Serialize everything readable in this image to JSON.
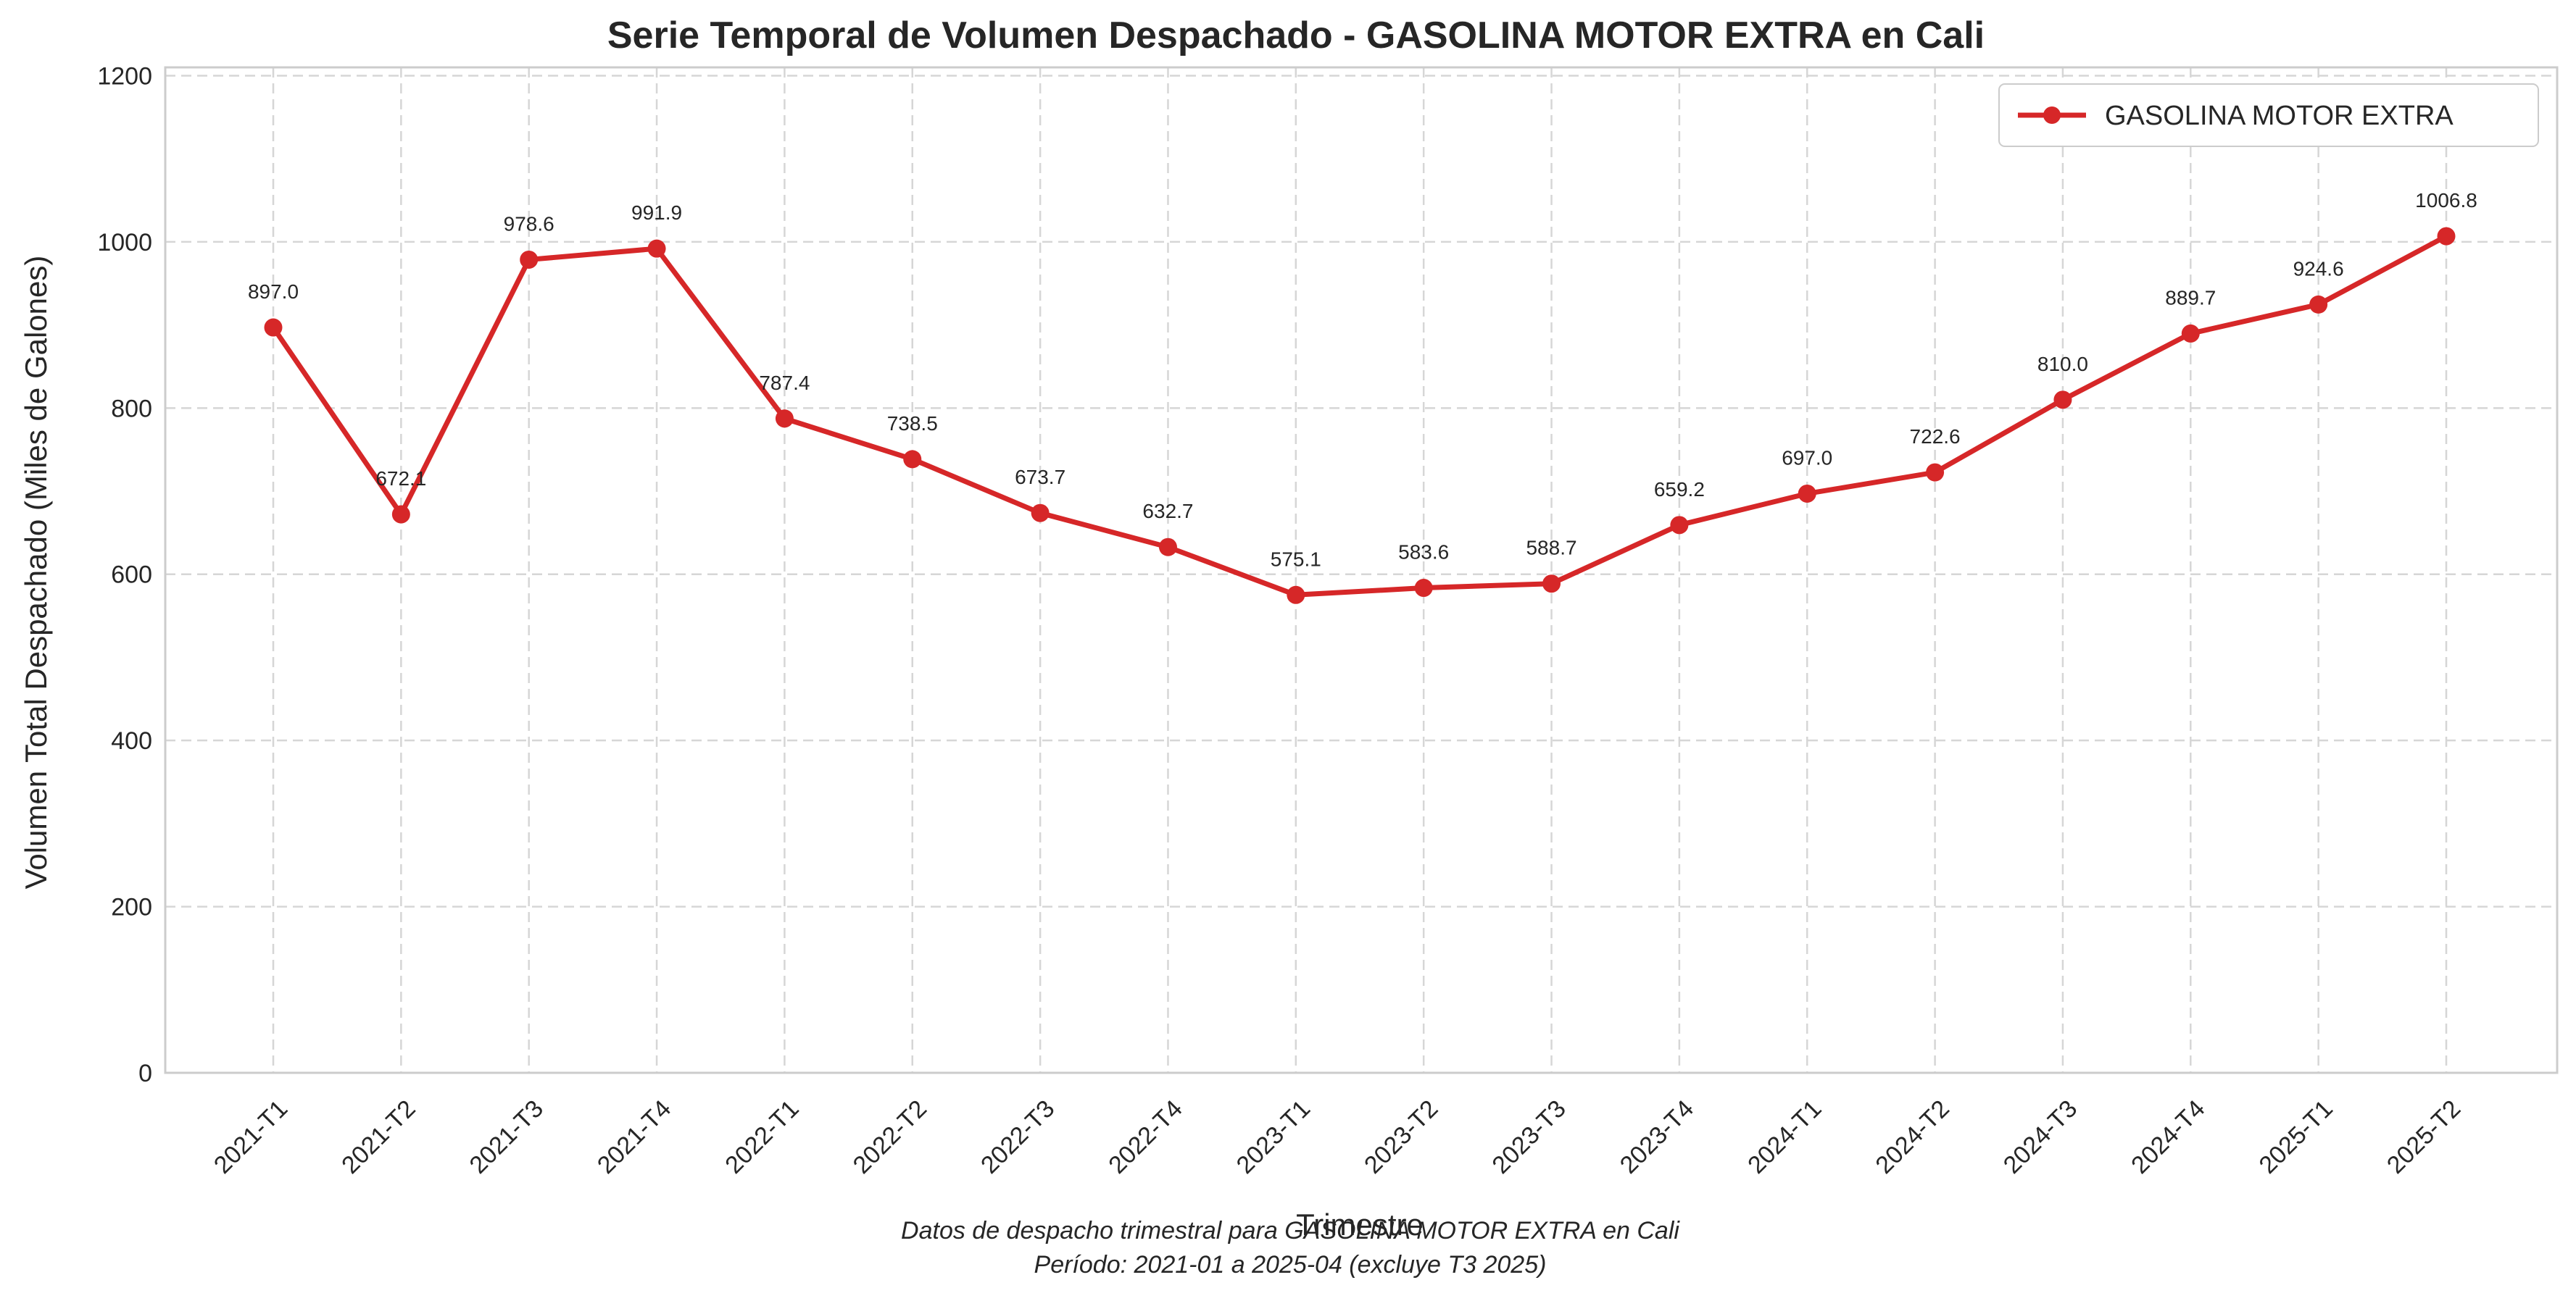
{
  "chart_data": {
    "type": "line",
    "title": "Serie Temporal de Volumen Despachado - GASOLINA MOTOR EXTRA en Cali",
    "xlabel": "Trimestre",
    "ylabel": "Volumen Total Despachado (Miles de Galones)",
    "ylim": [
      0,
      1210
    ],
    "yticks": [
      0,
      200,
      400,
      600,
      800,
      1000,
      1200
    ],
    "ytick_labels": [
      "0",
      "200",
      "400",
      "600",
      "800",
      "1000",
      "1200"
    ],
    "grid": true,
    "legend_position": "top-right",
    "categories": [
      "2021-T1",
      "2021-T2",
      "2021-T3",
      "2021-T4",
      "2022-T1",
      "2022-T2",
      "2022-T3",
      "2022-T4",
      "2023-T1",
      "2023-T2",
      "2023-T3",
      "2023-T4",
      "2024-T1",
      "2024-T2",
      "2024-T3",
      "2024-T4",
      "2025-T1",
      "2025-T2"
    ],
    "series": [
      {
        "name": "GASOLINA MOTOR EXTRA",
        "color": "#d62728",
        "values": [
          897.0,
          672.1,
          978.6,
          991.9,
          787.4,
          738.5,
          673.7,
          632.7,
          575.1,
          583.6,
          588.7,
          659.2,
          697.0,
          722.6,
          810.0,
          889.7,
          924.6,
          1006.8
        ],
        "value_labels": [
          "897.0",
          "672.1",
          "978.6",
          "991.9",
          "787.4",
          "738.5",
          "673.7",
          "632.7",
          "575.1",
          "583.6",
          "588.7",
          "659.2",
          "697.0",
          "722.6",
          "810.0",
          "889.7",
          "924.6",
          "1006.8"
        ]
      }
    ],
    "caption_lines": [
      "Datos de despacho trimestral para GASOLINA MOTOR EXTRA en Cali",
      "Período: 2021-01 a 2025-04 (excluye T3 2025)"
    ]
  }
}
